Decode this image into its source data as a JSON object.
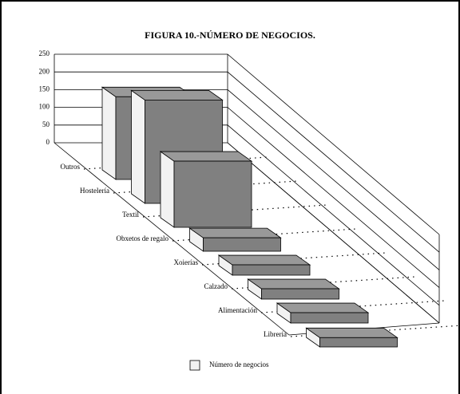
{
  "chart_data": {
    "type": "bar",
    "title": "FIGURA 10.-NÚMERO DE NEGOCIOS.",
    "categories": [
      "Outros",
      "Hostelería",
      "Textil",
      "Obxetos de regalo",
      "Xoierías",
      "Calzado",
      "Alimentación",
      "Librería"
    ],
    "series": [
      {
        "name": "Número de negocios",
        "color": "#808080",
        "values": [
          160,
          200,
          128,
          26,
          20,
          20,
          20,
          18
        ]
      }
    ],
    "ylim": [
      0,
      250
    ],
    "yticks": [
      0,
      50,
      100,
      150,
      200,
      250
    ],
    "grid": true,
    "legend": "bottom"
  }
}
